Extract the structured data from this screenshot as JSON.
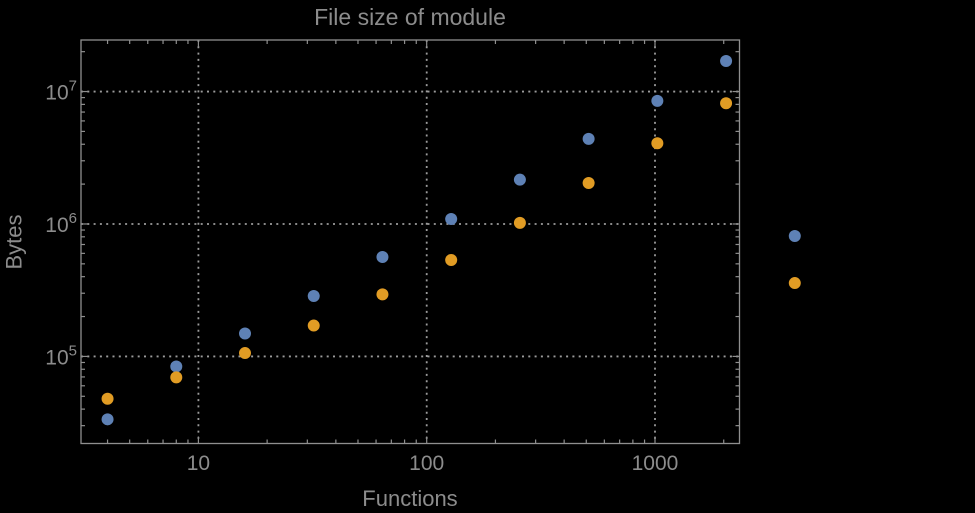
{
  "page": {
    "background": "#000000"
  },
  "chart_data": {
    "type": "scatter",
    "title": "File size of module",
    "xlabel": "Functions",
    "ylabel": "Bytes",
    "x_scale": "log",
    "y_scale": "log",
    "xlim": [
      3.06,
      2345
    ],
    "ylim": [
      22000,
      24500000
    ],
    "grid": {
      "show": true,
      "style": "dotted",
      "x_values": [
        10,
        100,
        1000
      ],
      "y_values": [
        100000,
        1000000,
        10000000
      ]
    },
    "x_ticks": [
      {
        "label": "10",
        "value": 10
      },
      {
        "label": "100",
        "value": 100
      },
      {
        "label": "1000",
        "value": 1000
      }
    ],
    "y_ticks": [
      {
        "base": "10",
        "exp": "5",
        "value": 100000
      },
      {
        "base": "10",
        "exp": "6",
        "value": 1000000
      },
      {
        "base": "10",
        "exp": "7",
        "value": 10000000
      }
    ],
    "legend": {
      "show": false
    },
    "colors": {
      "series1": "#5e81b5",
      "series2": "#e19c24",
      "frame": "#8f8f8f",
      "grid": "#9b9b9b",
      "text": "#8c8c8c"
    },
    "series": [
      {
        "name": "series-1-blue",
        "color": "#5e81b5",
        "marker": "circle",
        "points": [
          [
            4,
            33500
          ],
          [
            8,
            84000
          ],
          [
            16,
            149000
          ],
          [
            32,
            286000
          ],
          [
            64,
            563000
          ],
          [
            128,
            1090000
          ],
          [
            256,
            2160000
          ],
          [
            512,
            4390000
          ],
          [
            1024,
            8500000
          ],
          [
            2048,
            17000000
          ],
          [
            4096,
            812000
          ]
        ]
      },
      {
        "name": "series-2-orange",
        "color": "#e19c24",
        "marker": "circle",
        "points": [
          [
            4,
            47900
          ],
          [
            8,
            69500
          ],
          [
            16,
            106000
          ],
          [
            32,
            171000
          ],
          [
            64,
            294000
          ],
          [
            128,
            535000
          ],
          [
            256,
            1020000
          ],
          [
            512,
            2040000
          ],
          [
            1024,
            4070000
          ],
          [
            2048,
            8160000
          ],
          [
            4096,
            358000
          ]
        ]
      }
    ]
  }
}
